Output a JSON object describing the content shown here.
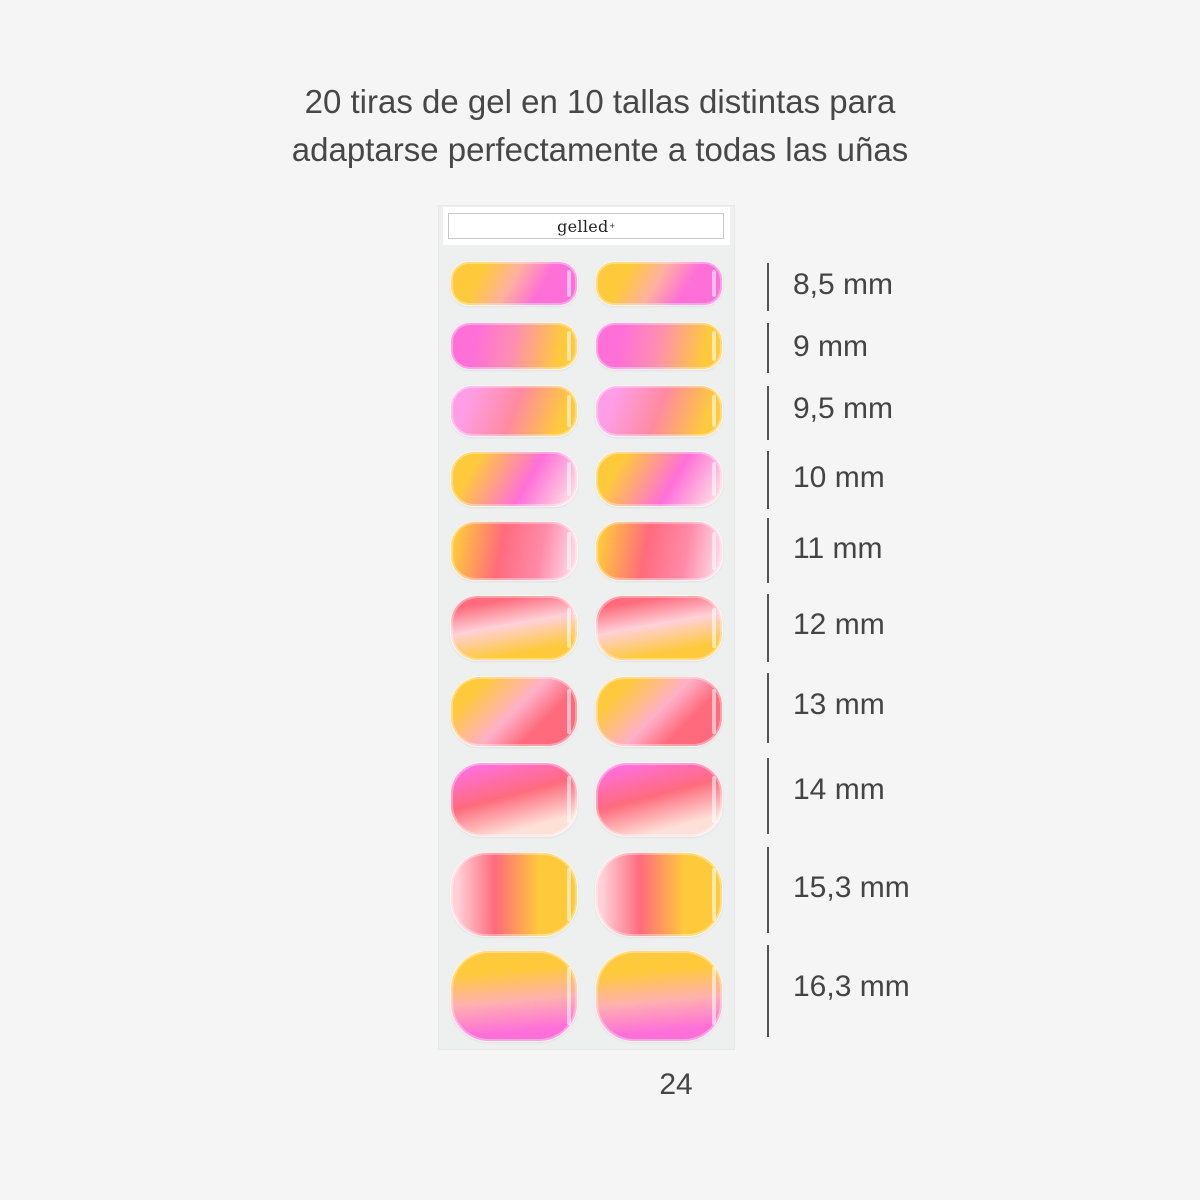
{
  "heading": {
    "line1": "20 tiras de gel en 10 tallas distintas para",
    "line2": "adaptarse perfectamente a todas las uñas"
  },
  "sheet": {
    "brand": "gelled",
    "brand_mark": "+"
  },
  "sizes": [
    "8,5 mm",
    "9 mm",
    "9,5 mm",
    "10 mm",
    "11 mm",
    "12 mm",
    "13 mm",
    "14 mm",
    "15,3 mm",
    "16,3 mm"
  ],
  "count": "24",
  "colors": {
    "pink": "#ff6fd8",
    "coral": "#ff6b7d",
    "yellow": "#ffc93c",
    "background": "#f5f5f5",
    "sheet": "#eef0f0"
  }
}
